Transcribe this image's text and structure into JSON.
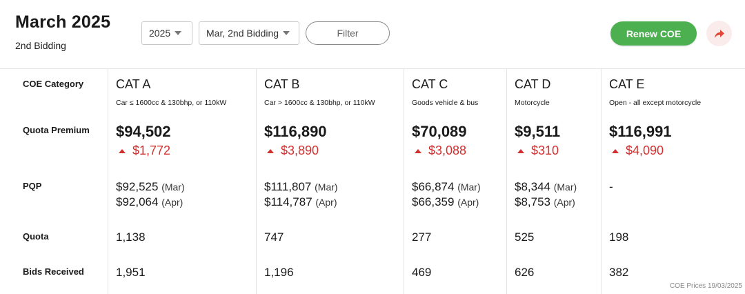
{
  "header": {
    "title": "March 2025",
    "subtitle": "2nd Bidding",
    "year_select": "2025",
    "bidding_select": "Mar, 2nd Bidding",
    "filter_label": "Filter",
    "renew_label": "Renew COE",
    "share_icon": "share-arrow-icon"
  },
  "colors": {
    "accent_green": "#4caf50",
    "increase_red": "#d32f2f",
    "share_bg": "#fbecec"
  },
  "row_labels": {
    "category": "COE Category",
    "premium": "Quota Premium",
    "pqp": "PQP",
    "quota": "Quota",
    "bids": "Bids Received"
  },
  "categories": [
    {
      "name": "CAT A",
      "desc": "Car ≤ 1600cc & 130bhp, or 110kW",
      "premium": "$94,502",
      "change": "$1,772",
      "pqp1_val": "$92,525",
      "pqp1_mo": "(Mar)",
      "pqp2_val": "$92,064",
      "pqp2_mo": "(Apr)",
      "quota": "1,138",
      "bids": "1,951"
    },
    {
      "name": "CAT B",
      "desc": "Car > 1600cc & 130bhp, or 110kW",
      "premium": "$116,890",
      "change": "$3,890",
      "pqp1_val": "$111,807",
      "pqp1_mo": "(Mar)",
      "pqp2_val": "$114,787",
      "pqp2_mo": "(Apr)",
      "quota": "747",
      "bids": "1,196"
    },
    {
      "name": "CAT C",
      "desc": "Goods vehicle & bus",
      "premium": "$70,089",
      "change": "$3,088",
      "pqp1_val": "$66,874",
      "pqp1_mo": "(Mar)",
      "pqp2_val": "$66,359",
      "pqp2_mo": "(Apr)",
      "quota": "277",
      "bids": "469"
    },
    {
      "name": "CAT D",
      "desc": "Motorcycle",
      "premium": "$9,511",
      "change": "$310",
      "pqp1_val": "$8,344",
      "pqp1_mo": "(Mar)",
      "pqp2_val": "$8,753",
      "pqp2_mo": "(Apr)",
      "quota": "525",
      "bids": "626"
    },
    {
      "name": "CAT E",
      "desc": "Open - all except motorcycle",
      "premium": "$116,991",
      "change": "$4,090",
      "pqp_none": "-",
      "quota": "198",
      "bids": "382"
    }
  ],
  "footer": {
    "note": "COE Prices 19/03/2025"
  }
}
